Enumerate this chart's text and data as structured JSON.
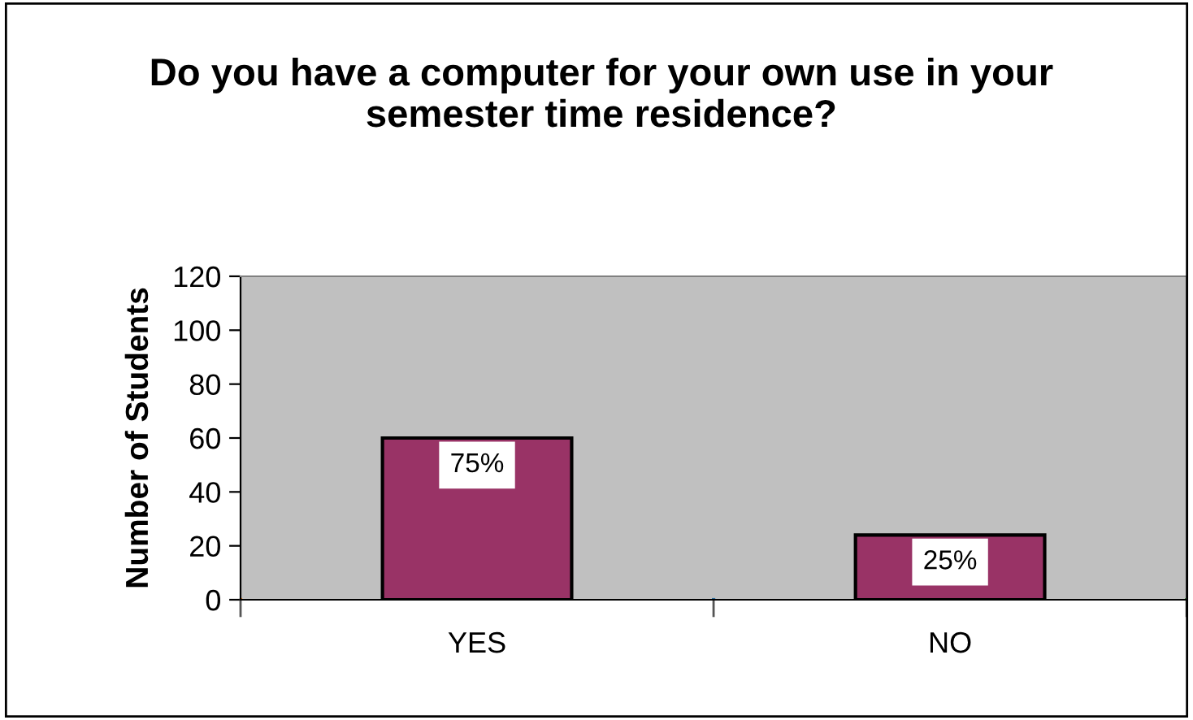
{
  "chart_data": {
    "type": "bar",
    "title": "Do you have a computer for your own use in your semester time residence?",
    "ylabel": "Number of Students",
    "categories": [
      "YES",
      "NO"
    ],
    "values": [
      60,
      24
    ],
    "annotations": [
      {
        "text": "75%",
        "x": "YES",
        "y": 60
      },
      {
        "text": "25%",
        "x": "NO",
        "y": 24
      }
    ],
    "color": "#993366",
    "ylim": [
      0,
      120
    ],
    "yticks": [
      0,
      20,
      40,
      60,
      80,
      100,
      120
    ],
    "grid": false,
    "legend": false
  }
}
